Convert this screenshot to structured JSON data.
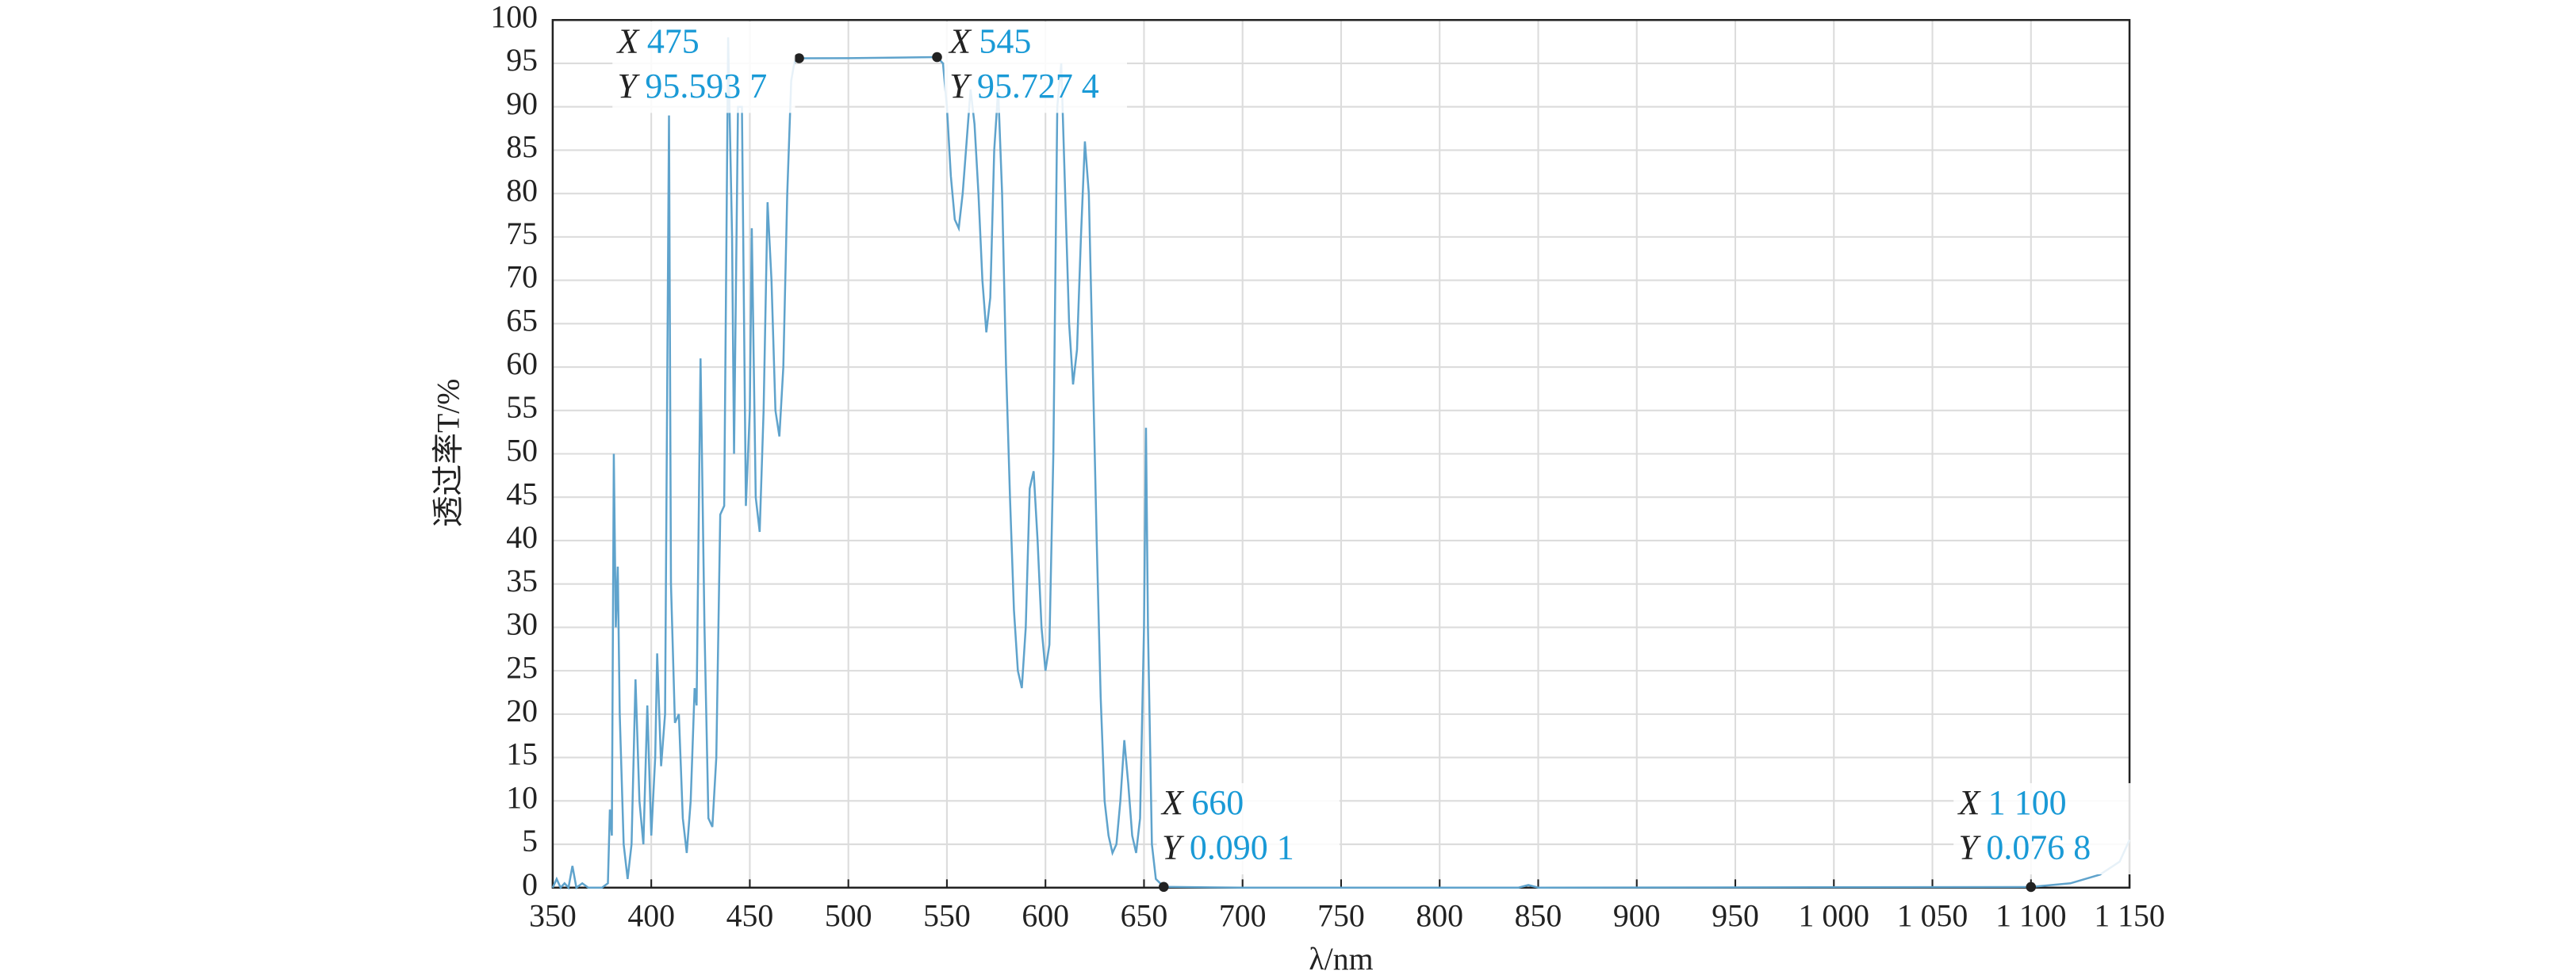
{
  "chart_data": {
    "type": "line",
    "x_label": "λ/nm",
    "y_label": "透过率T/%",
    "xlim": [
      350,
      1150
    ],
    "ylim": [
      0,
      100
    ],
    "xticks": [
      350,
      400,
      450,
      500,
      550,
      600,
      650,
      700,
      750,
      800,
      850,
      900,
      950,
      {
        "value": 1000,
        "label": "1 000"
      },
      {
        "value": 1050,
        "label": "1 050"
      },
      {
        "value": 1100,
        "label": "1 100"
      },
      {
        "value": 1150,
        "label": "1 150"
      }
    ],
    "yticks": [
      0,
      5,
      10,
      15,
      20,
      25,
      30,
      35,
      40,
      45,
      50,
      55,
      60,
      65,
      70,
      75,
      80,
      85,
      90,
      95,
      100
    ],
    "grid": true,
    "series": [
      {
        "color": "#5fa3cc",
        "x": [
          350,
          352,
          354,
          356,
          358,
          360,
          362,
          365,
          368,
          375,
          378,
          379,
          380,
          381,
          382,
          383,
          384,
          386,
          388,
          390,
          392,
          394,
          396,
          398,
          400,
          402,
          403,
          405,
          407,
          409,
          410,
          412,
          414,
          416,
          418,
          420,
          422,
          423,
          425,
          427,
          429,
          431,
          433,
          435,
          437,
          439,
          441,
          442,
          444,
          446,
          448,
          450,
          451,
          453,
          455,
          457,
          459,
          461,
          463,
          465,
          467,
          469,
          471,
          473,
          475,
          500,
          545,
          548,
          550,
          552,
          554,
          556,
          558,
          560,
          562,
          564,
          566,
          568,
          570,
          572,
          574,
          576,
          578,
          580,
          582,
          584,
          586,
          588,
          590,
          592,
          594,
          596,
          598,
          600,
          602,
          604,
          606,
          608,
          610,
          612,
          614,
          616,
          618,
          620,
          622,
          624,
          626,
          628,
          630,
          632,
          634,
          636,
          638,
          640,
          642,
          644,
          646,
          648,
          650,
          651,
          652,
          654,
          656,
          660,
          700,
          800,
          840,
          845,
          850,
          1100,
          1120,
          1135,
          1145,
          1150
        ],
        "values": [
          0,
          1,
          0,
          0.5,
          0,
          2.5,
          0,
          0.5,
          0,
          0,
          0.5,
          9,
          6,
          50,
          30,
          37,
          20,
          5,
          1,
          5,
          24,
          10,
          5,
          21,
          6,
          15,
          27,
          14,
          20,
          89,
          35,
          19,
          20,
          8,
          4,
          10,
          23,
          21,
          61,
          30,
          8,
          7,
          15,
          43,
          44,
          98,
          75,
          50,
          90,
          90,
          44,
          55,
          76,
          45,
          41,
          55,
          79,
          70,
          55,
          52,
          60,
          80,
          93,
          95.6,
          95.5937,
          95.6,
          95.7274,
          95,
          90,
          82,
          77,
          76,
          80,
          86,
          92,
          88,
          80,
          70,
          64,
          68,
          85,
          92,
          80,
          60,
          45,
          32,
          25,
          23,
          30,
          46,
          48,
          40,
          30,
          25,
          28,
          50,
          90,
          95,
          80,
          65,
          58,
          62,
          75,
          86,
          80,
          60,
          40,
          22,
          10,
          6,
          4,
          5,
          10,
          17,
          12,
          6,
          4,
          8,
          30,
          53,
          30,
          5,
          1,
          0.0901,
          0,
          0,
          0,
          0.3,
          0,
          0.0768,
          0.5,
          1.5,
          3,
          5.5
        ]
      }
    ],
    "annotation_keys": [
      "X",
      "Y"
    ],
    "annotations": [
      {
        "x": 475,
        "y": 95.5937,
        "x_label": "475",
        "y_label": "95.593 7"
      },
      {
        "x": 545,
        "y": 95.7274,
        "x_label": "545",
        "y_label": "95.727 4"
      },
      {
        "x": 660,
        "y": 0.0901,
        "x_label": "660",
        "y_label": "0.090 1"
      },
      {
        "x": 1100,
        "y": 0.0768,
        "x_label": "1 100",
        "y_label": "0.076 8"
      }
    ]
  }
}
